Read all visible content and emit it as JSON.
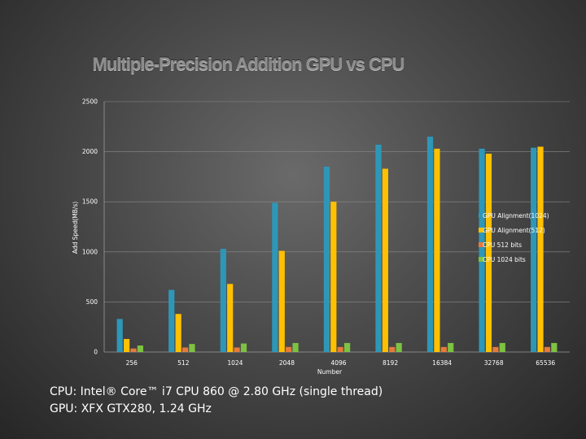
{
  "chart_data": {
    "type": "bar",
    "title": "Multiple-Precision Addition GPU vs CPU",
    "xlabel": "Number",
    "ylabel": "Add Speed(MB/s)",
    "ylim": [
      0,
      2500
    ],
    "yticks": [
      0,
      500,
      1000,
      1500,
      2000,
      2500
    ],
    "categories": [
      "256",
      "512",
      "1024",
      "2048",
      "4096",
      "8192",
      "16384",
      "32768",
      "65536"
    ],
    "legend_position": "right",
    "series": [
      {
        "name": "GPU Alignment(1024)",
        "color": "#2e97b8",
        "values": [
          330,
          620,
          1030,
          1490,
          1850,
          2070,
          2150,
          2030,
          2040
        ]
      },
      {
        "name": "GPU Alignment(512)",
        "color": "#ffc000",
        "values": [
          130,
          380,
          680,
          1010,
          1500,
          1830,
          2030,
          1980,
          2050
        ]
      },
      {
        "name": "CPU 512 bits",
        "color": "#e57a3c",
        "values": [
          35,
          45,
          45,
          50,
          50,
          50,
          50,
          50,
          50
        ]
      },
      {
        "name": "CPU 1024 bits",
        "color": "#7dc242",
        "values": [
          65,
          80,
          85,
          90,
          90,
          90,
          90,
          90,
          90
        ]
      }
    ]
  },
  "footnotes": {
    "line1": "CPU: Intel® Core™ i7 CPU 860 @ 2.80 GHz (single thread)",
    "line2": "GPU: XFX GTX280, 1.24 GHz"
  }
}
